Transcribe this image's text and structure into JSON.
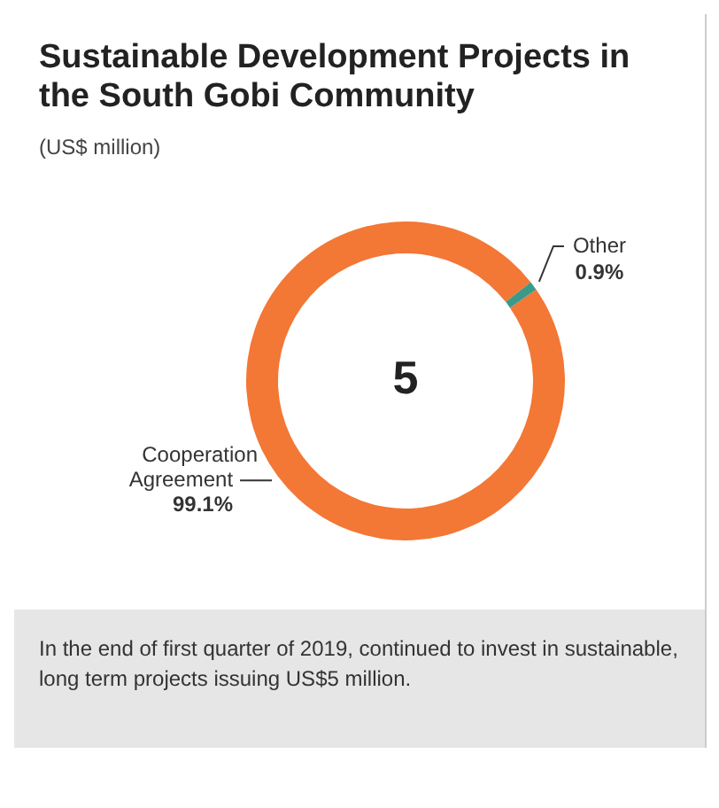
{
  "chart_data": {
    "type": "donut",
    "title": "Sustainable Development Projects in the South Gobi Community",
    "subtitle": "(US$ million)",
    "categories": [
      "Cooperation Agreement",
      "Other"
    ],
    "values": [
      99.1,
      0.9
    ],
    "value_labels": [
      "99.1%",
      "0.9%"
    ],
    "colors": [
      "#f37735",
      "#3a9a8a"
    ],
    "legend": false,
    "annotations": [
      "5",
      "In the end of first quarter of 2019, continued to invest in sustainable, long term projects issuing US$5 million."
    ]
  }
}
